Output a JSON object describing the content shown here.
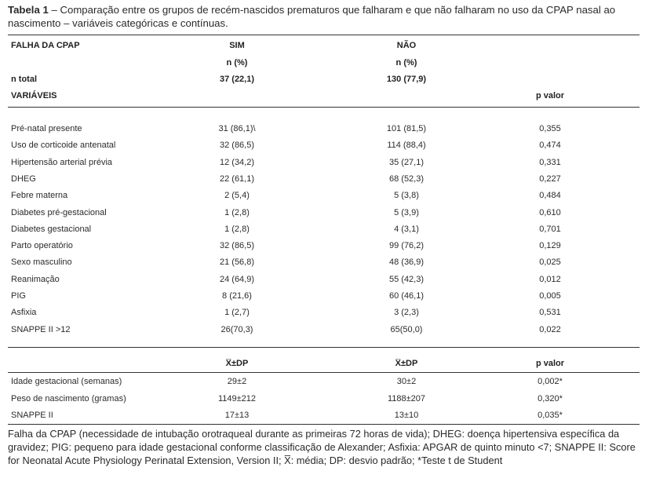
{
  "caption": {
    "label": "Tabela 1",
    "text": " – Comparação entre os grupos de recém-nascidos prematuros que falharam e que não falharam no uso da CPAP nasal ao nascimento – variáveis categóricas e contínuas."
  },
  "header": {
    "col0": "FALHA DA CPAP",
    "col1": "SIM",
    "col2": "NÃO",
    "sub1": "n (%)",
    "sub2": "n (%)",
    "ntotal_label": "n total",
    "ntotal_sim": "37 (22,1)",
    "ntotal_nao": "130 (77,9)",
    "variaveis": "VARIÁVEIS",
    "pvalor": "p valor"
  },
  "categorical_rows": [
    {
      "label": "Pré-natal presente",
      "sim": "31 (86,1)\\",
      "nao": "101 (81,5)",
      "p": "0,355"
    },
    {
      "label": "Uso de corticoide antenatal",
      "sim": "32 (86,5)",
      "nao": "114 (88,4)",
      "p": "0,474"
    },
    {
      "label": "Hipertensão arterial prévia",
      "sim": "12 (34,2)",
      "nao": "35 (27,1)",
      "p": "0,331"
    },
    {
      "label": "DHEG",
      "sim": "22 (61,1)",
      "nao": "68 (52,3)",
      "p": "0,227"
    },
    {
      "label": "Febre materna",
      "sim": "2 (5,4)",
      "nao": "5 (3,8)",
      "p": "0,484"
    },
    {
      "label": "Diabetes pré-gestacional",
      "sim": "1 (2,8)",
      "nao": "5 (3,9)",
      "p": "0,610"
    },
    {
      "label": "Diabetes gestacional",
      "sim": "1 (2,8)",
      "nao": "4 (3,1)",
      "p": "0,701"
    },
    {
      "label": "Parto operatório",
      "sim": "32 (86,5)",
      "nao": "99 (76,2)",
      "p": "0,129"
    },
    {
      "label": "Sexo masculino",
      "sim": "21 (56,8)",
      "nao": "48 (36,9)",
      "p": "0,025"
    },
    {
      "label": "Reanimação",
      "sim": "24 (64,9)",
      "nao": "55 (42,3)",
      "p": "0,012"
    },
    {
      "label": "PIG",
      "sim": "8 (21,6)",
      "nao": "60 (46,1)",
      "p": "0,005"
    },
    {
      "label": "Asfixia",
      "sim": "1 (2,7)",
      "nao": "3 (2,3)",
      "p": "0,531"
    },
    {
      "label": "SNAPPE II >12",
      "sim": "26(70,3)",
      "nao": "65(50,0)",
      "p": "0,022"
    }
  ],
  "continuous_header": {
    "sim": "X̅±DP",
    "nao": "X̅±DP",
    "p": "p valor"
  },
  "continuous_rows": [
    {
      "label": "Idade gestacional (semanas)",
      "sim": "29±2",
      "nao": "30±2",
      "p": "0,002*"
    },
    {
      "label": "Peso de nascimento (gramas)",
      "sim": "1149±212",
      "nao": "1188±207",
      "p": "0,320*"
    },
    {
      "label": "SNAPPE II",
      "sim": "17±13",
      "nao": "13±10",
      "p": "0,035*"
    }
  ],
  "footnote": "Falha da CPAP (necessidade de intubação orotraqueal durante as primeiras 72 horas de vida); DHEG: doença hipertensiva específica da gravidez; PIG: pequeno para idade gestacional conforme classificação de Alexander; Asfixia: APGAR de quinto minuto <7; SNAPPE II: Score for Neonatal Acute Physiology Perinatal Extension, Version II; X̅: média; DP: desvio padrão; *Teste t de Student"
}
